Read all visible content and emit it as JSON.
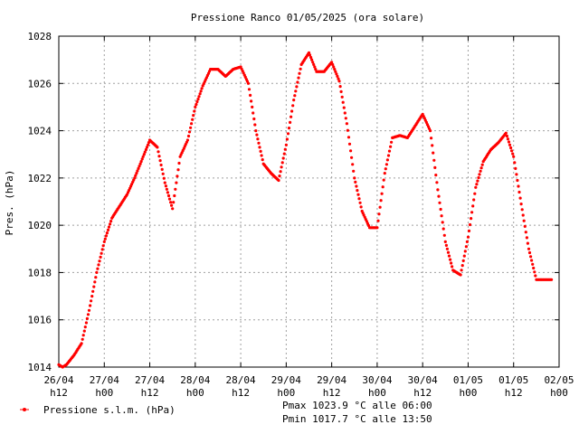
{
  "chart_data": {
    "type": "scatter",
    "title": "Pressione Ranco 01/05/2025 (ora solare)",
    "ylabel": "Pres. (hPa)",
    "xlabel": "",
    "ylim": [
      1014,
      1028
    ],
    "y_ticks": [
      "1014",
      "1016",
      "1018",
      "1020",
      "1022",
      "1024",
      "1026",
      "1028"
    ],
    "x_ticks": [
      {
        "date": "26/04",
        "hour": "h12"
      },
      {
        "date": "27/04",
        "hour": "h00"
      },
      {
        "date": "27/04",
        "hour": "h12"
      },
      {
        "date": "28/04",
        "hour": "h00"
      },
      {
        "date": "28/04",
        "hour": "h12"
      },
      {
        "date": "29/04",
        "hour": "h00"
      },
      {
        "date": "29/04",
        "hour": "h12"
      },
      {
        "date": "30/04",
        "hour": "h00"
      },
      {
        "date": "30/04",
        "hour": "h12"
      },
      {
        "date": "01/05",
        "hour": "h00"
      },
      {
        "date": "01/05",
        "hour": "h12"
      },
      {
        "date": "02/05",
        "hour": "h00"
      }
    ],
    "x_range_hours": [
      0,
      132
    ],
    "grid": true,
    "legend_position": "bottom-left",
    "series": [
      {
        "name": "Pressione s.l.m. (hPa)",
        "color": "#ff0000",
        "hours_from_26_04_h12": [
          0,
          1,
          2,
          4,
          6,
          8,
          10,
          12,
          14,
          16,
          18,
          20,
          22,
          24,
          26,
          28,
          30,
          32,
          34,
          36,
          38,
          40,
          42,
          44,
          46,
          48,
          50,
          52,
          54,
          56,
          58,
          60,
          62,
          64,
          66,
          68,
          70,
          72,
          74,
          76,
          78,
          80,
          82,
          84,
          86,
          88,
          90,
          92,
          94,
          96,
          98,
          100,
          102,
          104,
          106,
          108,
          110,
          112,
          114,
          116,
          118,
          120,
          122,
          124,
          126,
          128,
          130
        ],
        "values": [
          1014.1,
          1014.0,
          1014.1,
          1014.5,
          1015.0,
          1016.4,
          1018.0,
          1019.3,
          1020.3,
          1020.8,
          1021.3,
          1022.0,
          1022.8,
          1023.6,
          1023.3,
          1021.8,
          1020.7,
          1022.9,
          1023.6,
          1025.0,
          1025.9,
          1026.6,
          1026.6,
          1026.3,
          1026.6,
          1026.7,
          1026.0,
          1024.0,
          1022.6,
          1022.2,
          1021.9,
          1023.4,
          1025.3,
          1026.8,
          1027.3,
          1026.5,
          1026.5,
          1026.9,
          1026.1,
          1024.3,
          1022.0,
          1020.6,
          1019.9,
          1019.9,
          1022.2,
          1023.7,
          1023.8,
          1023.7,
          1024.2,
          1024.7,
          1024.0,
          1021.5,
          1019.3,
          1018.1,
          1017.9,
          1019.5,
          1021.6,
          1022.7,
          1023.2,
          1023.5,
          1023.9,
          1022.9,
          1020.9,
          1019.0,
          1017.7,
          1017.7,
          1017.7
        ]
      }
    ],
    "annotations": [
      "Pmax 1023.9 °C alle 06:00",
      "Pmin 1017.7 °C alle 13:50"
    ]
  }
}
